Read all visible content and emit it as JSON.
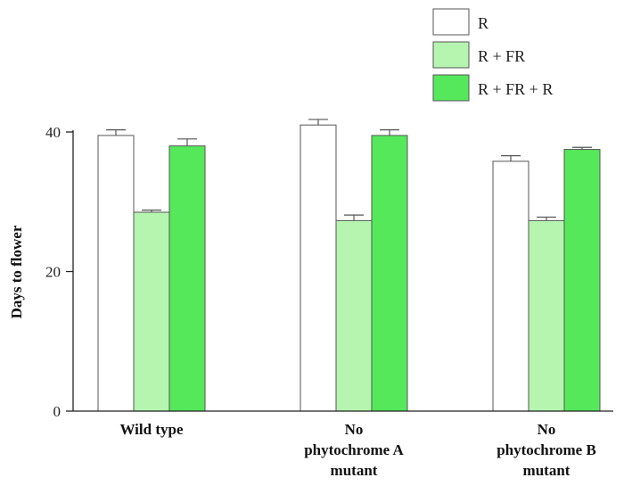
{
  "chart_data": {
    "type": "bar",
    "title": "",
    "xlabel": "",
    "ylabel": "Days to flower",
    "ylim": [
      0,
      40
    ],
    "yticks": [
      0,
      20,
      40
    ],
    "grid": false,
    "legend_position": "top-right",
    "categories": [
      [
        "Wild type"
      ],
      [
        "No",
        "phytochrome A",
        "mutant"
      ],
      [
        "No",
        "phytochrome B",
        "mutant"
      ]
    ],
    "series": [
      {
        "name": "R",
        "color": "#ffffff",
        "values": [
          39.5,
          41.0,
          35.8
        ],
        "errors": [
          0.8,
          0.8,
          0.8
        ]
      },
      {
        "name": "R + FR",
        "color": "#b5f5b0",
        "values": [
          28.5,
          27.3,
          27.3
        ],
        "errors": [
          0.3,
          0.8,
          0.5
        ]
      },
      {
        "name": "R + FR + R",
        "color": "#55e85a",
        "values": [
          38.0,
          39.5,
          37.5
        ],
        "errors": [
          1.0,
          0.8,
          0.3
        ]
      }
    ]
  }
}
